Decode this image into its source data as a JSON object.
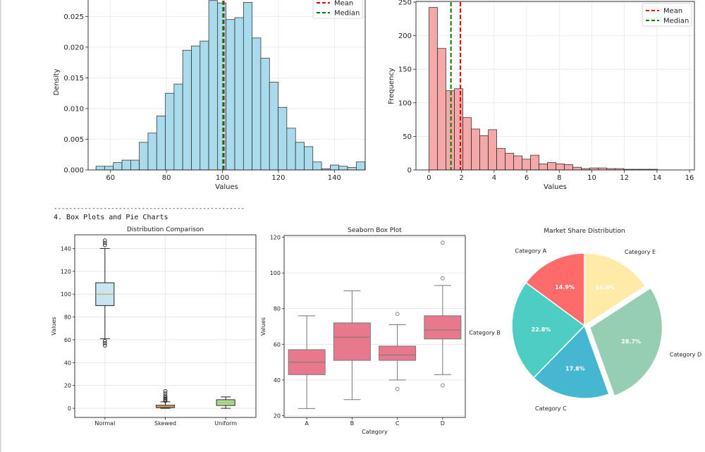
{
  "section": {
    "divider": "--------------------------------------------------",
    "title": "4. Box Plots and Pie Charts"
  },
  "colors": {
    "hist_blue": "#a9dbed",
    "hist_red": "#f4a8a8",
    "mean_line": "#e00000",
    "median_line": "#007a00",
    "box_normal": "#c7e6f2",
    "box_skewed": "#f0a77a",
    "box_uniform": "#a6e89a",
    "seaborn_box": "#e8798c",
    "pie": [
      "#ff6b6b",
      "#4ecdc4",
      "#45b7d1",
      "#96ceb4",
      "#ffeaa7"
    ]
  },
  "chart_data": [
    {
      "type": "bar",
      "subtype": "histogram",
      "xlabel": "Values",
      "ylabel": "Density",
      "xlim": [
        52,
        151
      ],
      "ylim": [
        0,
        0.0286
      ],
      "xticks": [
        "60",
        "80",
        "100",
        "120",
        "140"
      ],
      "yticks": [
        "0.000",
        "0.005",
        "0.010",
        "0.015",
        "0.020",
        "0.025"
      ],
      "bin_start": 54.8,
      "bin_width": 3.1,
      "values": [
        0.0006,
        0.0006,
        0.0012,
        0.0016,
        0.0016,
        0.0045,
        0.006,
        0.0088,
        0.0125,
        0.014,
        0.0195,
        0.0202,
        0.021,
        0.0276,
        0.0272,
        0.0245,
        0.0248,
        0.0273,
        0.0215,
        0.0182,
        0.0143,
        0.0102,
        0.0068,
        0.0045,
        0.0038,
        0.0013,
        0.0002,
        0.0008,
        0.0006,
        0.0004,
        0.0013
      ],
      "vlines": [
        {
          "name": "Mean",
          "x": 100.5
        },
        {
          "name": "Median",
          "x": 100.2
        }
      ],
      "legend": [
        "Mean",
        "Median"
      ],
      "legend_position": "top-right"
    },
    {
      "type": "bar",
      "subtype": "histogram",
      "xlabel": "Values",
      "ylabel": "Frequency",
      "xlim": [
        -0.8,
        16.3
      ],
      "ylim": [
        0,
        250
      ],
      "xticks": [
        "0",
        "2",
        "4",
        "6",
        "8",
        "10",
        "12",
        "14",
        "16"
      ],
      "yticks": [
        "0",
        "50",
        "100",
        "150",
        "200",
        "250"
      ],
      "bin_start": 0.0,
      "bin_width": 0.52,
      "values": [
        242,
        181,
        118,
        121,
        78,
        61,
        51,
        60,
        32,
        25,
        21,
        16,
        22,
        9,
        11,
        9,
        8,
        4,
        2,
        3,
        3,
        2,
        2,
        1,
        1,
        1,
        1,
        0,
        0,
        0,
        0,
        0,
        0,
        0,
        0,
        0,
        0,
        0,
        0,
        0,
        0,
        0,
        0,
        0,
        0,
        0,
        0,
        0,
        0,
        0,
        0,
        0,
        0,
        0,
        0,
        0,
        0,
        0,
        1
      ],
      "vlines": [
        {
          "name": "Mean",
          "x": 1.93
        },
        {
          "name": "Median",
          "x": 1.35
        }
      ],
      "legend": [
        "Mean",
        "Median"
      ],
      "legend_position": "top-right"
    },
    {
      "type": "box",
      "title": "Distribution Comparison",
      "ylabel": "Values",
      "ylim": [
        -8,
        152
      ],
      "yticks": [
        "0",
        "20",
        "40",
        "60",
        "80",
        "100",
        "120",
        "140"
      ],
      "categories": [
        "Normal",
        "Skewed",
        "Uniform"
      ],
      "boxes": [
        {
          "q1": 90,
          "median": 100,
          "q3": 110,
          "whisker_low": 61,
          "whisker_high": 140,
          "outliers": [
            55,
            57,
            59,
            143,
            145,
            147
          ]
        },
        {
          "q1": 0.6,
          "median": 1.4,
          "q3": 2.7,
          "whisker_low": 0,
          "whisker_high": 5.7,
          "outliers": [
            6.5,
            7.5,
            8.5,
            9.5,
            11,
            13,
            15
          ]
        },
        {
          "q1": 2.5,
          "median": 5,
          "q3": 7.5,
          "whisker_low": 0,
          "whisker_high": 10,
          "outliers": []
        }
      ],
      "grid": true
    },
    {
      "type": "box",
      "title": "Seaborn Box Plot",
      "xlabel": "Category",
      "ylabel": "Values",
      "ylim": [
        19,
        121
      ],
      "yticks": [
        "20",
        "40",
        "60",
        "80",
        "100",
        "120"
      ],
      "categories": [
        "A",
        "B",
        "C",
        "D"
      ],
      "boxes": [
        {
          "q1": 43,
          "median": 50,
          "q3": 57,
          "whisker_low": 24,
          "whisker_high": 76,
          "outliers": []
        },
        {
          "q1": 51,
          "median": 64,
          "q3": 72,
          "whisker_low": 29,
          "whisker_high": 90,
          "outliers": []
        },
        {
          "q1": 51,
          "median": 54,
          "q3": 59,
          "whisker_low": 40,
          "whisker_high": 71,
          "outliers": [
            35,
            77
          ]
        },
        {
          "q1": 63,
          "median": 68,
          "q3": 76,
          "whisker_low": 43,
          "whisker_high": 93,
          "outliers": [
            37,
            97,
            117
          ]
        }
      ],
      "grid": true
    },
    {
      "type": "pie",
      "title": "Market Share Distribution",
      "labels": [
        "Category A",
        "Category B",
        "Category C",
        "Category D",
        "Category E"
      ],
      "values": [
        14.9,
        22.8,
        17.8,
        28.7,
        15.8
      ],
      "value_labels": [
        "14.9%",
        "22.8%",
        "17.8%",
        "28.7%",
        "15.8%"
      ],
      "exploded": "Category D"
    }
  ]
}
